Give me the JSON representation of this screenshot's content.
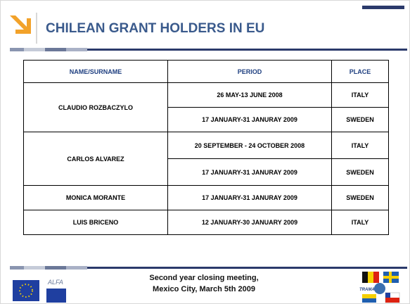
{
  "title": "CHILEAN GRANT HOLDERS IN EU",
  "table": {
    "header": [
      "NAME/SURNAME",
      "PERIOD",
      "PLACE"
    ],
    "groups": [
      {
        "name": "CLAUDIO ROZBACZYLO",
        "entries": [
          {
            "period": "26 MAY-13 JUNE 2008",
            "place": "ITALY"
          },
          {
            "period": "17 JANUARY-31 JANURAY 2009",
            "place": "SWEDEN"
          }
        ]
      },
      {
        "name": "CARLOS ALVAREZ",
        "entries": [
          {
            "period": "20 SEPTEMBER - 24 OCTOBER 2008",
            "place": "ITALY"
          },
          {
            "period": "17 JANUARY-31 JANURAY 2009",
            "place": "SWEDEN"
          }
        ]
      },
      {
        "name": "MONICA MORANTE",
        "entries": [
          {
            "period": "17 JANUARY-31 JANURAY 2009",
            "place": "SWEDEN"
          }
        ]
      },
      {
        "name": "LUIS BRICENO",
        "entries": [
          {
            "period": "12 JANUARY-30 JANUARY 2009",
            "place": "ITALY"
          }
        ]
      }
    ]
  },
  "footer": {
    "line1": "Second year closing meeting,",
    "line2": "Mexico City,  March 5th  2009"
  },
  "logos": {
    "alfa": "ALFA",
    "trama": "TRAMA"
  }
}
